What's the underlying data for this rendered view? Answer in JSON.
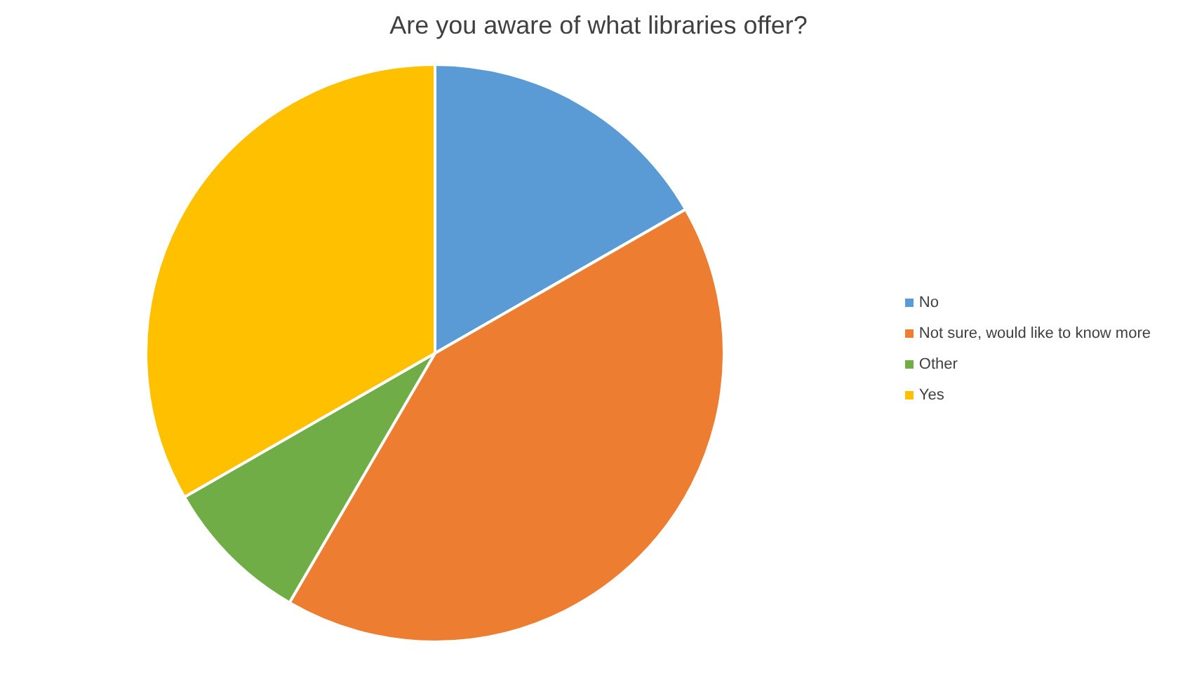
{
  "chart_data": {
    "type": "pie",
    "title": "Are you aware of what libraries offer?",
    "categories": [
      "No",
      "Not sure, would like to know more",
      "Other",
      "Yes"
    ],
    "values": [
      16.7,
      41.7,
      8.3,
      33.3
    ],
    "colors": [
      "#5b9bd5",
      "#ed7d31",
      "#70ad47",
      "#ffc000"
    ],
    "legend": "right"
  }
}
